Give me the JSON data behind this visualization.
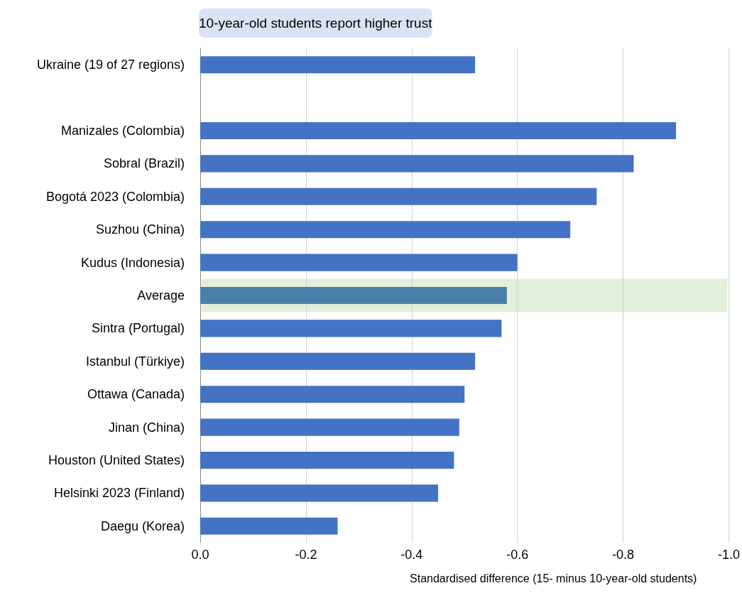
{
  "chart_data": {
    "type": "bar",
    "orientation": "horizontal",
    "title": "10-year-old students report higher trust",
    "xlabel": "Standardised difference (15- minus 10-year-old students)",
    "categories": [
      "Ukraine (19 of 27 regions)",
      null,
      "Manizales (Colombia)",
      "Sobral (Brazil)",
      "Bogotá 2023 (Colombia)",
      "Suzhou (China)",
      "Kudus (Indonesia)",
      "Average",
      "Sintra (Portugal)",
      "Istanbul (Türkiye)",
      "Ottawa (Canada)",
      "Jinan (China)",
      "Houston (United States)",
      "Helsinki 2023 (Finland)",
      "Daegu (Korea)"
    ],
    "values": [
      -0.52,
      null,
      -0.9,
      -0.82,
      -0.75,
      -0.7,
      -0.6,
      -0.58,
      -0.57,
      -0.52,
      -0.5,
      -0.49,
      -0.48,
      -0.45,
      -0.26
    ],
    "colors": [
      "#4472c4",
      "#4472c4",
      "#4472c4",
      "#4472c4",
      "#4472c4",
      "#4472c4",
      "#4472c4",
      "#4a7eab",
      "#4472c4",
      "#4472c4",
      "#4472c4",
      "#4472c4",
      "#4472c4",
      "#4472c4",
      "#4472c4"
    ],
    "xlim": [
      0,
      -1.0
    ],
    "xticks": [
      {
        "value": 0,
        "label": "0.0"
      },
      {
        "value": -0.2,
        "label": "-0.2"
      },
      {
        "value": -0.4,
        "label": "-0.4"
      },
      {
        "value": -0.6,
        "label": "-0.6"
      },
      {
        "value": -0.8,
        "label": "-0.8"
      },
      {
        "value": -1.0,
        "label": "-1.0"
      }
    ],
    "grid": "x",
    "bands": [
      {
        "axis": "y",
        "from": "Average",
        "to": "Average",
        "color": "#e2efda"
      }
    ]
  }
}
